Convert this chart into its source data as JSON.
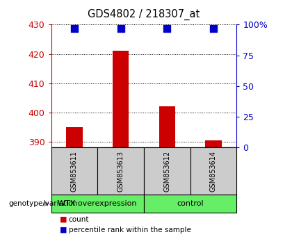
{
  "title": "GDS4802 / 218307_at",
  "samples": [
    "GSM853611",
    "GSM853613",
    "GSM853612",
    "GSM853614"
  ],
  "count_values": [
    395,
    421,
    402,
    390.5
  ],
  "percentile_values": [
    97,
    97,
    97,
    97
  ],
  "ylim_left": [
    388,
    430
  ],
  "ylim_right": [
    0,
    100
  ],
  "yticks_left": [
    390,
    400,
    410,
    420,
    430
  ],
  "yticks_right": [
    0,
    25,
    50,
    75,
    100
  ],
  "yticklabels_right": [
    "0",
    "25",
    "50",
    "75",
    "100%"
  ],
  "bar_color": "#cc0000",
  "dot_color": "#0000cc",
  "groups": [
    {
      "label": "WTX overexpression",
      "color": "#66dd66"
    },
    {
      "label": "control",
      "color": "#66dd66"
    }
  ],
  "group_label_prefix": "genotype/variation",
  "bar_width": 0.35,
  "dot_size": 45,
  "dot_marker": "s",
  "background_color": "#ffffff",
  "plot_bg_color": "#ffffff",
  "sample_box_color": "#cccccc"
}
